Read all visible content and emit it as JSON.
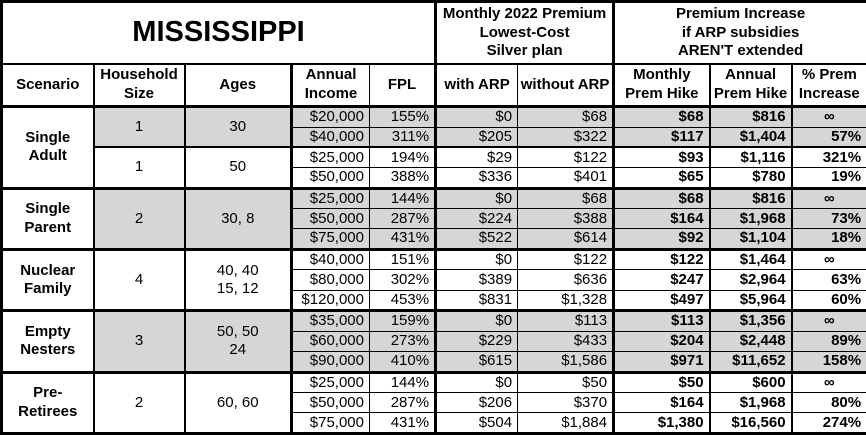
{
  "title": "MISSISSIPPI",
  "header": {
    "premium_group": "Monthly 2022 Premium\nLowest-Cost\nSilver plan",
    "increase_group": "Premium Increase\nif ARP subsidies\nAREN'T extended",
    "columns": [
      "Scenario",
      "Household\nSize",
      "Ages",
      "Annual\nIncome",
      "FPL",
      "with ARP",
      "without ARP",
      "Monthly\nPrem Hike",
      "Annual\nPrem Hike",
      "% Prem\nIncrease"
    ]
  },
  "colors": {
    "shaded_row_bg": "#d6d6d6",
    "border": "#000000",
    "text": "#000000",
    "background": "#ffffff"
  },
  "groups": [
    {
      "scenario": "Single\nAdult",
      "subgroups": [
        {
          "household_size": "1",
          "ages": "30",
          "shaded": true,
          "rows": [
            {
              "income": "$20,000",
              "fpl": "155%",
              "with_arp": "$0",
              "without_arp": "$68",
              "monthly_hike": "$68",
              "annual_hike": "$816",
              "pct_increase": "∞"
            },
            {
              "income": "$40,000",
              "fpl": "311%",
              "with_arp": "$205",
              "without_arp": "$322",
              "monthly_hike": "$117",
              "annual_hike": "$1,404",
              "pct_increase": "57%"
            }
          ]
        },
        {
          "household_size": "1",
          "ages": "50",
          "shaded": false,
          "rows": [
            {
              "income": "$25,000",
              "fpl": "194%",
              "with_arp": "$29",
              "without_arp": "$122",
              "monthly_hike": "$93",
              "annual_hike": "$1,116",
              "pct_increase": "321%"
            },
            {
              "income": "$50,000",
              "fpl": "388%",
              "with_arp": "$336",
              "without_arp": "$401",
              "monthly_hike": "$65",
              "annual_hike": "$780",
              "pct_increase": "19%"
            }
          ]
        }
      ]
    },
    {
      "scenario": "Single\nParent",
      "subgroups": [
        {
          "household_size": "2",
          "ages": "30, 8",
          "shaded": true,
          "rows": [
            {
              "income": "$25,000",
              "fpl": "144%",
              "with_arp": "$0",
              "without_arp": "$68",
              "monthly_hike": "$68",
              "annual_hike": "$816",
              "pct_increase": "∞"
            },
            {
              "income": "$50,000",
              "fpl": "287%",
              "with_arp": "$224",
              "without_arp": "$388",
              "monthly_hike": "$164",
              "annual_hike": "$1,968",
              "pct_increase": "73%"
            },
            {
              "income": "$75,000",
              "fpl": "431%",
              "with_arp": "$522",
              "without_arp": "$614",
              "monthly_hike": "$92",
              "annual_hike": "$1,104",
              "pct_increase": "18%"
            }
          ]
        }
      ]
    },
    {
      "scenario": "Nuclear\nFamily",
      "subgroups": [
        {
          "household_size": "4",
          "ages": "40, 40\n15, 12",
          "shaded": false,
          "rows": [
            {
              "income": "$40,000",
              "fpl": "151%",
              "with_arp": "$0",
              "without_arp": "$122",
              "monthly_hike": "$122",
              "annual_hike": "$1,464",
              "pct_increase": "∞"
            },
            {
              "income": "$80,000",
              "fpl": "302%",
              "with_arp": "$389",
              "without_arp": "$636",
              "monthly_hike": "$247",
              "annual_hike": "$2,964",
              "pct_increase": "63%"
            },
            {
              "income": "$120,000",
              "fpl": "453%",
              "with_arp": "$831",
              "without_arp": "$1,328",
              "monthly_hike": "$497",
              "annual_hike": "$5,964",
              "pct_increase": "60%"
            }
          ]
        }
      ]
    },
    {
      "scenario": "Empty\nNesters",
      "subgroups": [
        {
          "household_size": "3",
          "ages": "50, 50\n24",
          "shaded": true,
          "rows": [
            {
              "income": "$35,000",
              "fpl": "159%",
              "with_arp": "$0",
              "without_arp": "$113",
              "monthly_hike": "$113",
              "annual_hike": "$1,356",
              "pct_increase": "∞"
            },
            {
              "income": "$60,000",
              "fpl": "273%",
              "with_arp": "$229",
              "without_arp": "$433",
              "monthly_hike": "$204",
              "annual_hike": "$2,448",
              "pct_increase": "89%"
            },
            {
              "income": "$90,000",
              "fpl": "410%",
              "with_arp": "$615",
              "without_arp": "$1,586",
              "monthly_hike": "$971",
              "annual_hike": "$11,652",
              "pct_increase": "158%"
            }
          ]
        }
      ]
    },
    {
      "scenario": "Pre-\nRetirees",
      "subgroups": [
        {
          "household_size": "2",
          "ages": "60, 60",
          "shaded": false,
          "rows": [
            {
              "income": "$25,000",
              "fpl": "144%",
              "with_arp": "$0",
              "without_arp": "$50",
              "monthly_hike": "$50",
              "annual_hike": "$600",
              "pct_increase": "∞"
            },
            {
              "income": "$50,000",
              "fpl": "287%",
              "with_arp": "$206",
              "without_arp": "$370",
              "monthly_hike": "$164",
              "annual_hike": "$1,968",
              "pct_increase": "80%"
            },
            {
              "income": "$75,000",
              "fpl": "431%",
              "with_arp": "$504",
              "without_arp": "$1,884",
              "monthly_hike": "$1,380",
              "annual_hike": "$16,560",
              "pct_increase": "274%"
            }
          ]
        }
      ]
    }
  ]
}
